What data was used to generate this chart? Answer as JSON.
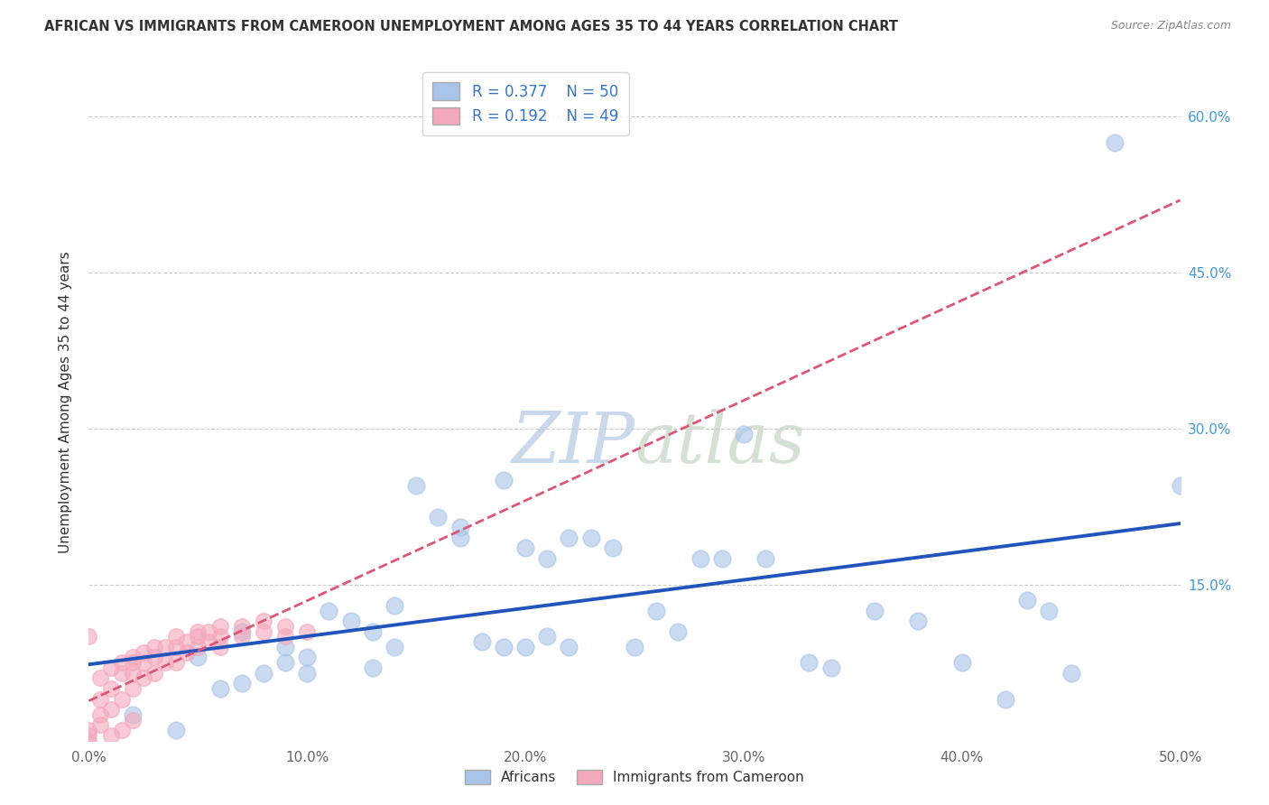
{
  "title": "AFRICAN VS IMMIGRANTS FROM CAMEROON UNEMPLOYMENT AMONG AGES 35 TO 44 YEARS CORRELATION CHART",
  "source": "Source: ZipAtlas.com",
  "xlabel_ticks": [
    "0.0%",
    "10.0%",
    "20.0%",
    "30.0%",
    "40.0%",
    "50.0%"
  ],
  "ylabel_label": "Unemployment Among Ages 35 to 44 years",
  "ylabel_ticks_labels": [
    "15.0%",
    "30.0%",
    "45.0%",
    "60.0%"
  ],
  "ylabel_ticks_vals": [
    0.15,
    0.3,
    0.45,
    0.6
  ],
  "xlim": [
    0.0,
    0.5
  ],
  "ylim": [
    0.0,
    0.65
  ],
  "legend_r_african": "R = 0.377",
  "legend_n_african": "N = 50",
  "legend_r_cameroon": "R = 0.192",
  "legend_n_cameroon": "N = 49",
  "african_color": "#a8c4e8",
  "cameroon_color": "#f4a8bc",
  "trend_blue": "#2255bb",
  "trend_pink": "#dd5577",
  "watermark_zip": "ZIP",
  "watermark_atlas": "atlas",
  "african_points": [
    [
      0.02,
      0.025
    ],
    [
      0.04,
      0.01
    ],
    [
      0.05,
      0.08
    ],
    [
      0.06,
      0.05
    ],
    [
      0.07,
      0.105
    ],
    [
      0.07,
      0.055
    ],
    [
      0.08,
      0.065
    ],
    [
      0.09,
      0.09
    ],
    [
      0.09,
      0.075
    ],
    [
      0.1,
      0.08
    ],
    [
      0.1,
      0.065
    ],
    [
      0.11,
      0.125
    ],
    [
      0.12,
      0.115
    ],
    [
      0.13,
      0.105
    ],
    [
      0.13,
      0.07
    ],
    [
      0.14,
      0.13
    ],
    [
      0.14,
      0.09
    ],
    [
      0.15,
      0.245
    ],
    [
      0.16,
      0.215
    ],
    [
      0.17,
      0.205
    ],
    [
      0.17,
      0.195
    ],
    [
      0.18,
      0.095
    ],
    [
      0.19,
      0.25
    ],
    [
      0.19,
      0.09
    ],
    [
      0.2,
      0.185
    ],
    [
      0.2,
      0.09
    ],
    [
      0.21,
      0.175
    ],
    [
      0.21,
      0.1
    ],
    [
      0.22,
      0.195
    ],
    [
      0.22,
      0.09
    ],
    [
      0.23,
      0.195
    ],
    [
      0.24,
      0.185
    ],
    [
      0.25,
      0.09
    ],
    [
      0.26,
      0.125
    ],
    [
      0.27,
      0.105
    ],
    [
      0.28,
      0.175
    ],
    [
      0.29,
      0.175
    ],
    [
      0.3,
      0.295
    ],
    [
      0.31,
      0.175
    ],
    [
      0.33,
      0.075
    ],
    [
      0.34,
      0.07
    ],
    [
      0.36,
      0.125
    ],
    [
      0.38,
      0.115
    ],
    [
      0.4,
      0.075
    ],
    [
      0.42,
      0.04
    ],
    [
      0.43,
      0.135
    ],
    [
      0.44,
      0.125
    ],
    [
      0.45,
      0.065
    ],
    [
      0.47,
      0.575
    ],
    [
      0.5,
      0.245
    ]
  ],
  "cameroon_points": [
    [
      0.0,
      0.0
    ],
    [
      0.0,
      0.005
    ],
    [
      0.0,
      0.01
    ],
    [
      0.005,
      0.025
    ],
    [
      0.005,
      0.04
    ],
    [
      0.005,
      0.06
    ],
    [
      0.01,
      0.03
    ],
    [
      0.01,
      0.05
    ],
    [
      0.01,
      0.07
    ],
    [
      0.015,
      0.04
    ],
    [
      0.015,
      0.065
    ],
    [
      0.015,
      0.075
    ],
    [
      0.02,
      0.05
    ],
    [
      0.02,
      0.065
    ],
    [
      0.02,
      0.075
    ],
    [
      0.02,
      0.08
    ],
    [
      0.025,
      0.06
    ],
    [
      0.025,
      0.075
    ],
    [
      0.025,
      0.085
    ],
    [
      0.03,
      0.065
    ],
    [
      0.03,
      0.08
    ],
    [
      0.03,
      0.09
    ],
    [
      0.035,
      0.075
    ],
    [
      0.035,
      0.09
    ],
    [
      0.04,
      0.075
    ],
    [
      0.04,
      0.09
    ],
    [
      0.04,
      0.1
    ],
    [
      0.045,
      0.085
    ],
    [
      0.045,
      0.095
    ],
    [
      0.05,
      0.09
    ],
    [
      0.05,
      0.1
    ],
    [
      0.05,
      0.105
    ],
    [
      0.055,
      0.095
    ],
    [
      0.055,
      0.105
    ],
    [
      0.06,
      0.09
    ],
    [
      0.06,
      0.1
    ],
    [
      0.06,
      0.11
    ],
    [
      0.07,
      0.1
    ],
    [
      0.07,
      0.11
    ],
    [
      0.08,
      0.105
    ],
    [
      0.08,
      0.115
    ],
    [
      0.09,
      0.1
    ],
    [
      0.09,
      0.11
    ],
    [
      0.1,
      0.105
    ],
    [
      0.0,
      0.1
    ],
    [
      0.005,
      0.015
    ],
    [
      0.01,
      0.005
    ],
    [
      0.015,
      0.01
    ],
    [
      0.02,
      0.02
    ]
  ],
  "background_color": "#ffffff",
  "grid_color": "#cccccc"
}
